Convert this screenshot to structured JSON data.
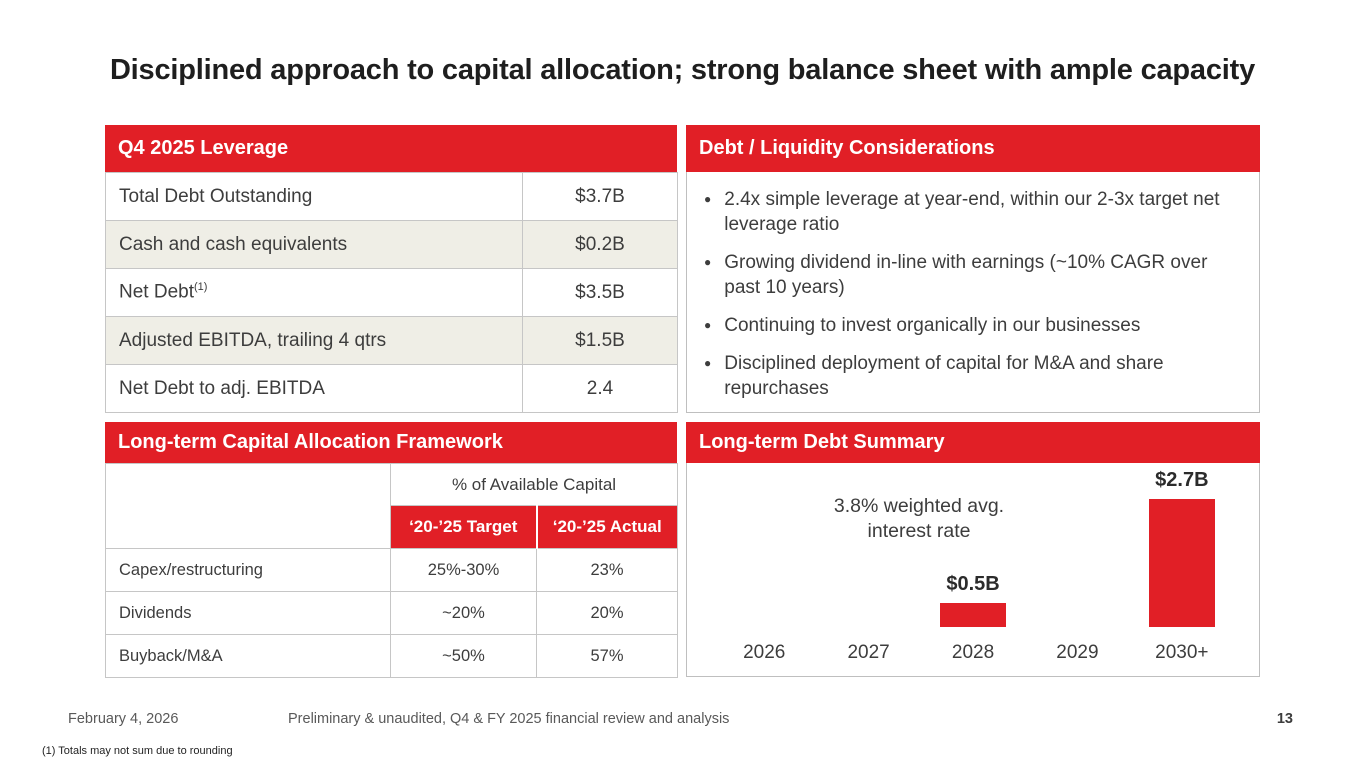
{
  "title": "Disciplined approach to capital allocation; strong balance sheet with ample capacity",
  "colors": {
    "red": "#E11F26",
    "stripe": "#EFEEE6",
    "cell_border": "#C6C6C6",
    "panel_border": "#BFBFBF"
  },
  "leverage_table": {
    "header": "Q4 2025 Leverage",
    "rows": [
      {
        "label": "Total Debt Outstanding",
        "sup": "",
        "value": "$3.7B"
      },
      {
        "label": "Cash and cash equivalents",
        "sup": "",
        "value": "$0.2B"
      },
      {
        "label": "Net Debt",
        "sup": "(1)",
        "value": "$3.5B"
      },
      {
        "label": "Adjusted EBITDA, trailing 4 qtrs",
        "sup": "",
        "value": "$1.5B"
      },
      {
        "label": "Net Debt to adj. EBITDA",
        "sup": "",
        "value": "2.4"
      }
    ]
  },
  "considerations": {
    "header": "Debt / Liquidity Considerations",
    "bullets": [
      "2.4x simple leverage at year-end, within our 2-3x target net leverage ratio",
      "Growing dividend in-line with earnings (~10% CAGR over past 10 years)",
      "Continuing to invest organically in our businesses",
      "Disciplined deployment of capital for M&A and share repurchases"
    ]
  },
  "framework_table": {
    "header": "Long-term Capital Allocation Framework",
    "group_header": "% of Available Capital",
    "col_headers": [
      "‘20-’25 Target",
      "‘20-’25 Actual"
    ],
    "rows": [
      {
        "label": "Capex/restructuring",
        "target": "25%-30%",
        "actual": "23%"
      },
      {
        "label": "Dividends",
        "target": "~20%",
        "actual": "20%"
      },
      {
        "label": "Buyback/M&A",
        "target": "~50%",
        "actual": "57%"
      }
    ]
  },
  "debt_summary": {
    "header": "Long-term Debt Summary",
    "annotation_line1": "3.8% weighted avg.",
    "annotation_line2": "interest rate"
  },
  "chart_data": {
    "type": "bar",
    "title": "Long-term Debt Summary",
    "categories": [
      "2026",
      "2027",
      "2028",
      "2029",
      "2030+"
    ],
    "values": [
      0,
      0,
      0.5,
      0,
      2.7
    ],
    "bar_labels": [
      "",
      "",
      "$0.5B",
      "",
      "$2.7B"
    ],
    "unit": "billions USD",
    "annotation": "3.8% weighted avg. interest rate",
    "bar_color": "#E11F26",
    "ylim": [
      0,
      3.0
    ],
    "grid": false,
    "legend": false,
    "xlabel": "",
    "ylabel": ""
  },
  "footer": {
    "date": "February 4, 2026",
    "center": "Preliminary & unaudited, Q4 & FY 2025 financial review and analysis",
    "page": "13",
    "footnote": "(1) Totals may not sum due to rounding"
  }
}
